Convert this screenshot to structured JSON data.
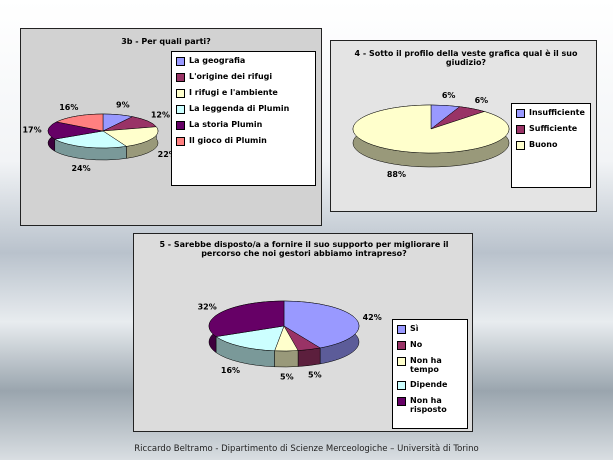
{
  "chart_data": [
    {
      "type": "pie",
      "title": "3b - Per quali parti?",
      "categories": [
        "La geografia",
        "L'origine dei rifugi",
        "I rifugi e l'ambiente",
        "La leggenda di Plumin",
        "La storia Plumin",
        "Il gioco di Plumin"
      ],
      "values": [
        9,
        12,
        22,
        24,
        17,
        16
      ],
      "value_labels": [
        "9%",
        "12%",
        "22%",
        "24%",
        "17%",
        "16%"
      ],
      "colors": [
        "#9999ff",
        "#993366",
        "#ffffcc",
        "#ccffff",
        "#660066",
        "#ff8080"
      ],
      "legend": "right"
    },
    {
      "type": "pie",
      "title": "4 - Sotto il profilo della veste grafica qual è il suo giudizio?",
      "categories": [
        "Insufficiente",
        "Sufficiente",
        "Buono"
      ],
      "values": [
        6,
        6,
        88
      ],
      "value_labels": [
        "6%",
        "6%",
        "88%"
      ],
      "colors": [
        "#9999ff",
        "#993366",
        "#ffffcc"
      ],
      "legend": "right"
    },
    {
      "type": "pie",
      "title": "5 - Sarebbe disposto/a a fornire il suo supporto per migliorare il percorso che noi gestori abbiamo intrapreso?",
      "categories": [
        "Sì",
        "No",
        "Non ha tempo",
        "Dipende",
        "Non ha risposto"
      ],
      "values": [
        42,
        5,
        5,
        16,
        32
      ],
      "value_labels": [
        "42%",
        "5%",
        "5%",
        "16%",
        "32%"
      ],
      "colors": [
        "#9999ff",
        "#993366",
        "#ffffcc",
        "#ccffff",
        "#660066"
      ],
      "legend": "bottom-right"
    }
  ],
  "footer": "Riccardo Beltramo - Dipartimento di Scienze Merceologiche – Università di Torino"
}
